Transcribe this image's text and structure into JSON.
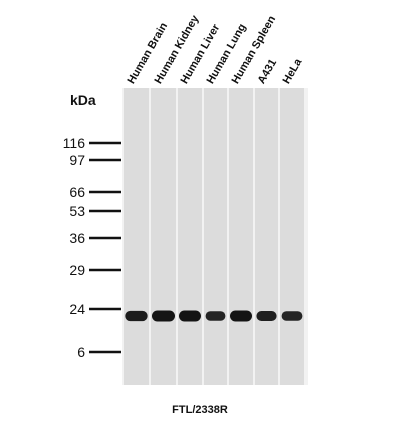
{
  "lanes": [
    "Human Brain",
    "Human Kidney",
    "Human Liver",
    "Human Lung",
    "Human Spleen",
    "A431",
    "HeLa"
  ],
  "unit_label": "kDa",
  "markers": [
    "116",
    "97",
    "66",
    "53",
    "36",
    "29",
    "24",
    "6"
  ],
  "band_intensity": [
    0.85,
    1.0,
    1.0,
    0.7,
    1.0,
    0.8,
    0.7
  ],
  "caption": "FTL/2338R",
  "colors": {
    "lane": "#dcdcdc",
    "lane_gap": "#f2f2f2",
    "band": "#141414",
    "marker": "#111111"
  }
}
